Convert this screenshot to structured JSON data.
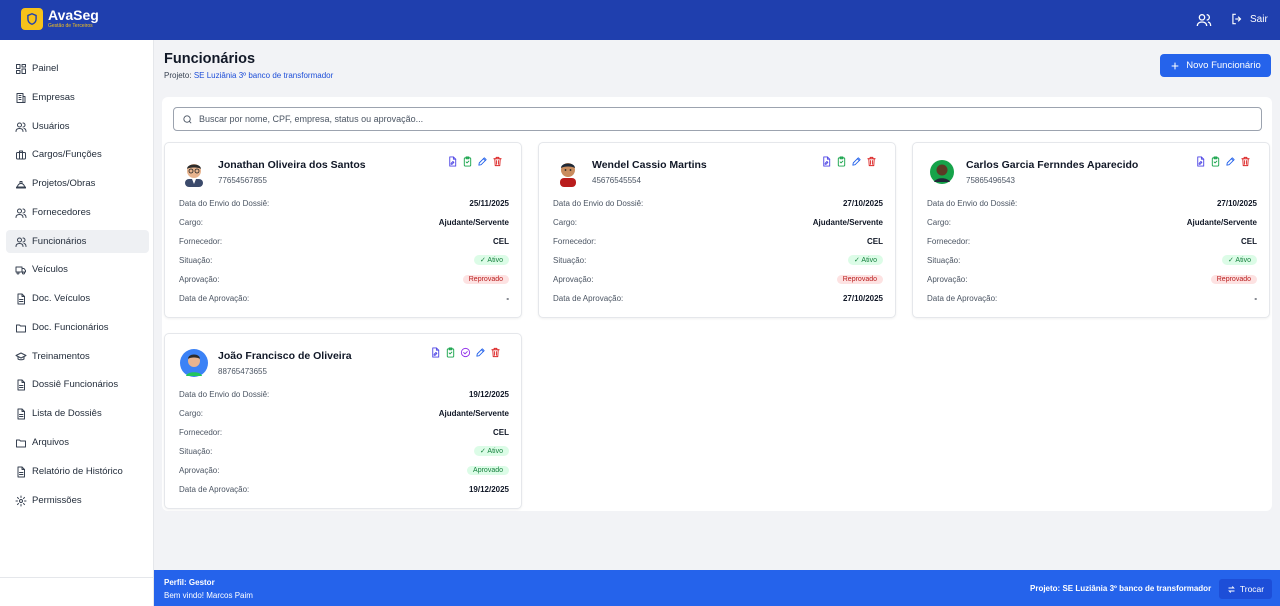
{
  "header": {
    "logo_title": "AvaSeg",
    "logo_subtitle": "Gestão de Terceiros",
    "logout_label": "Sair"
  },
  "sidebar": {
    "items": [
      {
        "label": "Painel",
        "icon": "grid-icon"
      },
      {
        "label": "Empresas",
        "icon": "building-icon"
      },
      {
        "label": "Usuários",
        "icon": "users-icon"
      },
      {
        "label": "Cargos/Funções",
        "icon": "briefcase-icon"
      },
      {
        "label": "Projetos/Obras",
        "icon": "hardhat-icon"
      },
      {
        "label": "Fornecedores",
        "icon": "users-icon"
      },
      {
        "label": "Funcionários",
        "icon": "users-icon",
        "active": true
      },
      {
        "label": "Veículos",
        "icon": "truck-icon"
      },
      {
        "label": "Doc. Veículos",
        "icon": "file-icon"
      },
      {
        "label": "Doc. Funcionários",
        "icon": "folder-icon"
      },
      {
        "label": "Treinamentos",
        "icon": "graduation-cap-icon"
      },
      {
        "label": "Dossiê Funcionários",
        "icon": "file-icon"
      },
      {
        "label": "Lista de Dossiês",
        "icon": "file-icon"
      },
      {
        "label": "Arquivos",
        "icon": "folder-icon"
      },
      {
        "label": "Relatório de Histórico",
        "icon": "file-icon"
      },
      {
        "label": "Permissões",
        "icon": "gear-icon"
      }
    ]
  },
  "main": {
    "title": "Funcionários",
    "project_prefix": "Projeto:",
    "project_name": "SE Luziânia 3º banco de transformador",
    "new_button": "Novo Funcionário",
    "search_placeholder": "Buscar por nome, CPF, empresa, status ou aprovação...",
    "field_labels": {
      "envio": "Data do Envio do Dossiê:",
      "cargo": "Cargo:",
      "fornecedor": "Fornecedor:",
      "situacao": "Situação:",
      "aprovacao": "Aprovação:",
      "data_aprovacao": "Data de Aprovação:"
    },
    "employees": [
      {
        "name": "Jonathan Oliveira dos Santos",
        "cpf": "77654567855",
        "envio": "25/11/2025",
        "cargo": "Ajudante/Servente",
        "fornecedor": "CEL",
        "situacao": "✓ Ativo",
        "aprovacao": "Reprovado",
        "data_aprovacao": "-"
      },
      {
        "name": "Wendel Cassio Martins",
        "cpf": "45676545554",
        "envio": "27/10/2025",
        "cargo": "Ajudante/Servente",
        "fornecedor": "CEL",
        "situacao": "✓ Ativo",
        "aprovacao": "Reprovado",
        "data_aprovacao": "27/10/2025"
      },
      {
        "name": "Carlos Garcia Fernndes Aparecido",
        "cpf": "75865496543",
        "envio": "27/10/2025",
        "cargo": "Ajudante/Servente",
        "fornecedor": "CEL",
        "situacao": "✓ Ativo",
        "aprovacao": "Reprovado",
        "data_aprovacao": "-"
      },
      {
        "name": "João Francisco de Oliveira",
        "cpf": "88765473655",
        "envio": "19/12/2025",
        "cargo": "Ajudante/Servente",
        "fornecedor": "CEL",
        "situacao": "✓ Ativo",
        "aprovacao": "Aprovado",
        "data_aprovacao": "19/12/2025"
      }
    ]
  },
  "footer": {
    "profile": "Perfil: Gestor",
    "welcome": "Bem vindo! Marcos Paim",
    "project": "Projeto: SE Luziânia 3º banco de transformador",
    "switch_label": "Trocar"
  },
  "colors": {
    "header_bg": "#1f3fae",
    "accent": "#2563eb",
    "logo_yellow": "#f6c21a",
    "success": "#15803d",
    "danger": "#b91c1c"
  }
}
